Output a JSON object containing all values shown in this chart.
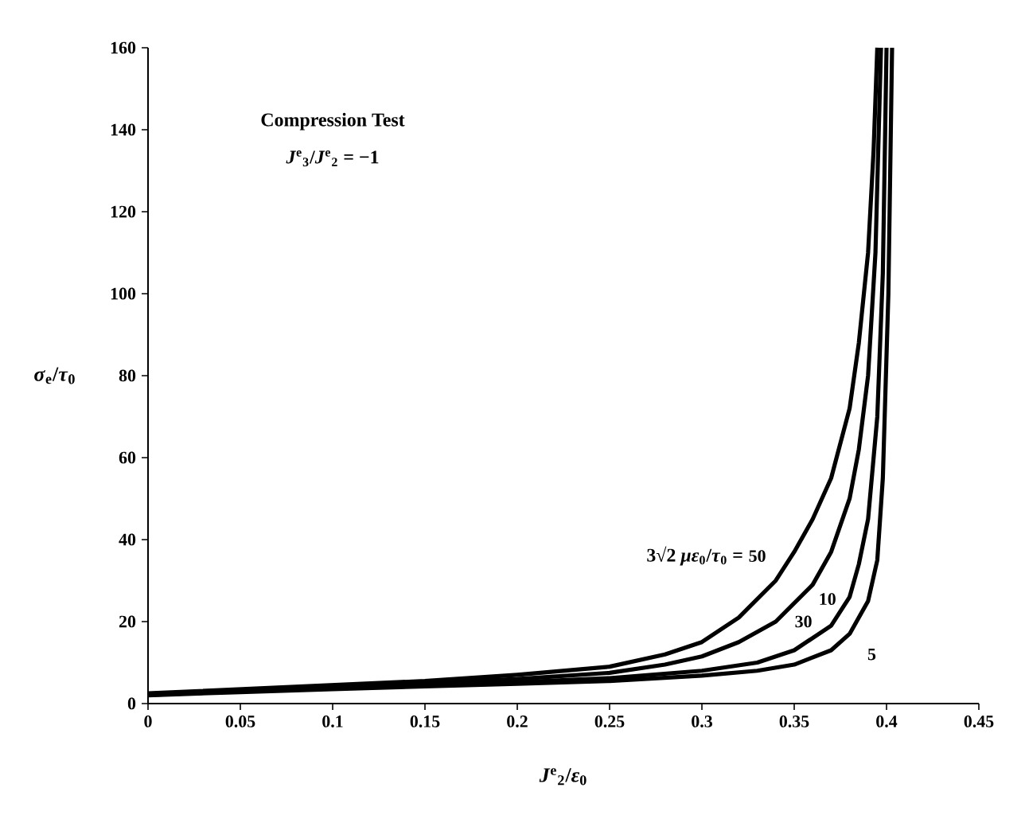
{
  "chart_data": {
    "type": "line",
    "xlabel": "*J*$^{e}$$_{2}$/*ε*$_{0}$",
    "ylabel": "*σ*$_{e}$/*τ*$_{0}$",
    "xlim": [
      0,
      0.45
    ],
    "ylim": [
      0,
      160
    ],
    "xticks": [
      0,
      0.05,
      0.1,
      0.15,
      0.2,
      0.25,
      0.3,
      0.35,
      0.4,
      0.45
    ],
    "yticks": [
      0,
      20,
      40,
      60,
      80,
      100,
      120,
      140,
      160
    ],
    "grid": false,
    "legend": false,
    "marker": "none",
    "line_style": "solid",
    "annotations": [
      "Compression Test",
      "*J*$^{e}$$_{3}$/*J*$^{e}$$_{2}$ = −1",
      "3√2 *με*$_{0}$/*τ*$_{0}$ ="
    ],
    "series": [
      {
        "name": "50",
        "color": "#000000",
        "x": [
          0,
          0.05,
          0.1,
          0.15,
          0.2,
          0.25,
          0.28,
          0.3,
          0.32,
          0.34,
          0.35,
          0.36,
          0.37,
          0.38,
          0.385,
          0.39,
          0.393,
          0.395
        ],
        "values": [
          2.5,
          3.5,
          4.5,
          5.5,
          7,
          9,
          12,
          15,
          21,
          30,
          37,
          45,
          55,
          72,
          88,
          110,
          135,
          160
        ]
      },
      {
        "name": "30",
        "color": "#000000",
        "x": [
          0,
          0.05,
          0.1,
          0.15,
          0.2,
          0.25,
          0.28,
          0.3,
          0.32,
          0.34,
          0.36,
          0.37,
          0.38,
          0.385,
          0.39,
          0.394,
          0.397
        ],
        "values": [
          2.3,
          3.2,
          4.2,
          5,
          6,
          7.5,
          9.5,
          11.5,
          15,
          20,
          29,
          37,
          50,
          62,
          80,
          110,
          160
        ]
      },
      {
        "name": "10",
        "color": "#000000",
        "x": [
          0,
          0.05,
          0.1,
          0.15,
          0.2,
          0.25,
          0.3,
          0.33,
          0.35,
          0.37,
          0.38,
          0.385,
          0.39,
          0.395,
          0.398,
          0.4
        ],
        "values": [
          2.1,
          3,
          3.8,
          4.5,
          5.2,
          6.2,
          8,
          10,
          13,
          19,
          26,
          34,
          45,
          70,
          105,
          160
        ]
      },
      {
        "name": "5",
        "color": "#000000",
        "x": [
          0,
          0.05,
          0.1,
          0.15,
          0.2,
          0.25,
          0.3,
          0.33,
          0.35,
          0.37,
          0.38,
          0.39,
          0.395,
          0.398,
          0.401,
          0.403
        ],
        "values": [
          2,
          2.8,
          3.5,
          4.2,
          4.8,
          5.5,
          6.8,
          8,
          9.5,
          13,
          17,
          25,
          35,
          55,
          100,
          160
        ]
      }
    ]
  }
}
